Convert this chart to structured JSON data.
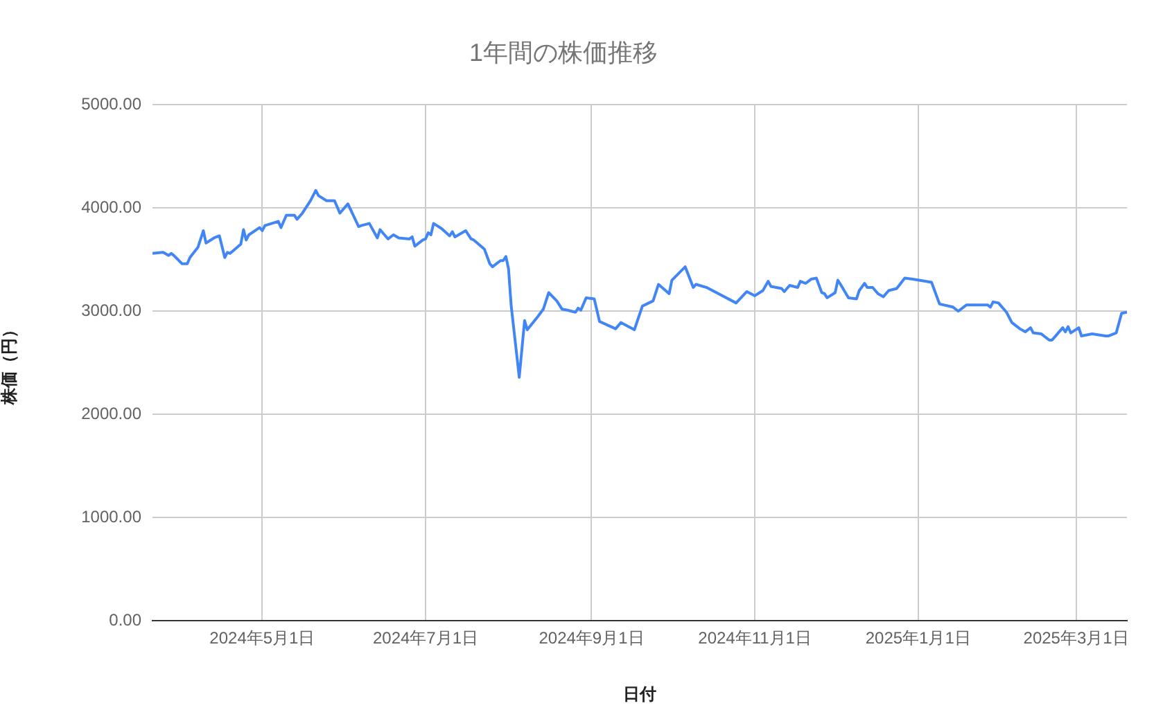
{
  "chart_data": {
    "type": "line",
    "title": "1年間の株価推移",
    "xlabel": "日付",
    "ylabel": "株価（円）",
    "color": "#4285f4",
    "marker": "none",
    "line_style": "solid",
    "grid": true,
    "legend": false,
    "xlim": [
      "2024-03-21",
      "2025-03-20"
    ],
    "xticks": [
      {
        "value": "2024-05-01",
        "label": "2024年5月1日"
      },
      {
        "value": "2024-07-01",
        "label": "2024年7月1日"
      },
      {
        "value": "2024-09-01",
        "label": "2024年9月1日"
      },
      {
        "value": "2024-11-01",
        "label": "2024年11月1日"
      },
      {
        "value": "2025-01-01",
        "label": "2025年1月1日"
      },
      {
        "value": "2025-03-01",
        "label": "2025年3月1日"
      }
    ],
    "ylim": [
      0,
      5000
    ],
    "yticks": [
      {
        "value": 0,
        "label": "0.00"
      },
      {
        "value": 1000,
        "label": "1000.00"
      },
      {
        "value": 2000,
        "label": "2000.00"
      },
      {
        "value": 3000,
        "label": "3000.00"
      },
      {
        "value": 4000,
        "label": "4000.00"
      },
      {
        "value": 5000,
        "label": "5000.00"
      }
    ],
    "x": [
      "2024-03-21",
      "2024-03-25",
      "2024-03-27",
      "2024-03-28",
      "2024-03-29",
      "2024-04-01",
      "2024-04-03",
      "2024-04-04",
      "2024-04-07",
      "2024-04-09",
      "2024-04-10",
      "2024-04-13",
      "2024-04-15",
      "2024-04-17",
      "2024-04-18",
      "2024-04-19",
      "2024-04-23",
      "2024-04-24",
      "2024-04-25",
      "2024-04-26",
      "2024-04-30",
      "2024-05-01",
      "2024-05-02",
      "2024-05-07",
      "2024-05-08",
      "2024-05-10",
      "2024-05-13",
      "2024-05-14",
      "2024-05-16",
      "2024-05-19",
      "2024-05-21",
      "2024-05-22",
      "2024-05-25",
      "2024-05-28",
      "2024-05-30",
      "2024-06-02",
      "2024-06-06",
      "2024-06-07",
      "2024-06-10",
      "2024-06-13",
      "2024-06-14",
      "2024-06-17",
      "2024-06-19",
      "2024-06-21",
      "2024-06-25",
      "2024-06-26",
      "2024-06-27",
      "2024-06-30",
      "2024-07-01",
      "2024-07-02",
      "2024-07-03",
      "2024-07-04",
      "2024-07-07",
      "2024-07-10",
      "2024-07-11",
      "2024-07-12",
      "2024-07-16",
      "2024-07-18",
      "2024-07-19",
      "2024-07-23",
      "2024-07-25",
      "2024-07-26",
      "2024-07-29",
      "2024-07-30",
      "2024-07-31",
      "2024-08-01",
      "2024-08-02",
      "2024-08-05",
      "2024-08-07",
      "2024-08-08",
      "2024-08-12",
      "2024-08-14",
      "2024-08-16",
      "2024-08-19",
      "2024-08-21",
      "2024-08-23",
      "2024-08-26",
      "2024-08-27",
      "2024-08-28",
      "2024-08-30",
      "2024-09-02",
      "2024-09-04",
      "2024-09-10",
      "2024-09-12",
      "2024-09-17",
      "2024-09-20",
      "2024-09-24",
      "2024-09-26",
      "2024-09-30",
      "2024-10-01",
      "2024-10-06",
      "2024-10-09",
      "2024-10-10",
      "2024-10-14",
      "2024-10-25",
      "2024-10-29",
      "2024-11-01",
      "2024-11-04",
      "2024-11-06",
      "2024-11-07",
      "2024-11-11",
      "2024-11-12",
      "2024-11-14",
      "2024-11-17",
      "2024-11-18",
      "2024-11-20",
      "2024-11-22",
      "2024-11-24",
      "2024-11-26",
      "2024-11-27",
      "2024-11-28",
      "2024-12-01",
      "2024-12-02",
      "2024-12-03",
      "2024-12-06",
      "2024-12-09",
      "2024-12-10",
      "2024-12-12",
      "2024-12-13",
      "2024-12-15",
      "2024-12-17",
      "2024-12-19",
      "2024-12-21",
      "2024-12-24",
      "2024-12-27",
      "2024-12-30",
      "2025-01-06",
      "2025-01-09",
      "2025-01-14",
      "2025-01-16",
      "2025-01-19",
      "2025-01-23",
      "2025-01-27",
      "2025-01-28",
      "2025-01-29",
      "2025-01-31",
      "2025-02-03",
      "2025-02-05",
      "2025-02-08",
      "2025-02-10",
      "2025-02-12",
      "2025-02-13",
      "2025-02-16",
      "2025-02-19",
      "2025-02-20",
      "2025-02-24",
      "2025-02-25",
      "2025-02-26",
      "2025-02-27",
      "2025-03-02",
      "2025-03-03",
      "2025-03-07",
      "2025-03-12",
      "2025-03-13",
      "2025-03-16",
      "2025-03-18",
      "2025-03-20"
    ],
    "values": [
      3560,
      3570,
      3540,
      3560,
      3540,
      3460,
      3460,
      3520,
      3620,
      3780,
      3660,
      3710,
      3730,
      3520,
      3570,
      3560,
      3650,
      3790,
      3690,
      3740,
      3810,
      3780,
      3830,
      3870,
      3810,
      3930,
      3930,
      3890,
      3950,
      4070,
      4170,
      4120,
      4070,
      4070,
      3950,
      4040,
      3820,
      3830,
      3850,
      3710,
      3790,
      3700,
      3740,
      3710,
      3700,
      3720,
      3630,
      3690,
      3700,
      3760,
      3740,
      3850,
      3800,
      3730,
      3770,
      3720,
      3780,
      3700,
      3690,
      3600,
      3460,
      3430,
      3490,
      3490,
      3530,
      3410,
      3050,
      2360,
      2910,
      2820,
      2950,
      3020,
      3180,
      3100,
      3020,
      3010,
      2990,
      3030,
      3010,
      3130,
      3120,
      2900,
      2830,
      2890,
      2820,
      3050,
      3100,
      3260,
      3170,
      3300,
      3430,
      3230,
      3260,
      3230,
      3080,
      3190,
      3150,
      3200,
      3290,
      3240,
      3220,
      3190,
      3250,
      3230,
      3290,
      3270,
      3310,
      3320,
      3180,
      3170,
      3130,
      3180,
      3300,
      3260,
      3130,
      3120,
      3200,
      3270,
      3230,
      3230,
      3170,
      3140,
      3200,
      3220,
      3320,
      3310,
      3280,
      3070,
      3040,
      3000,
      3060,
      3060,
      3060,
      3040,
      3090,
      3080,
      2990,
      2890,
      2830,
      2800,
      2840,
      2790,
      2780,
      2720,
      2720,
      2840,
      2800,
      2850,
      2790,
      2840,
      2760,
      2780,
      2760,
      2760,
      2790,
      2980,
      2990
    ]
  }
}
